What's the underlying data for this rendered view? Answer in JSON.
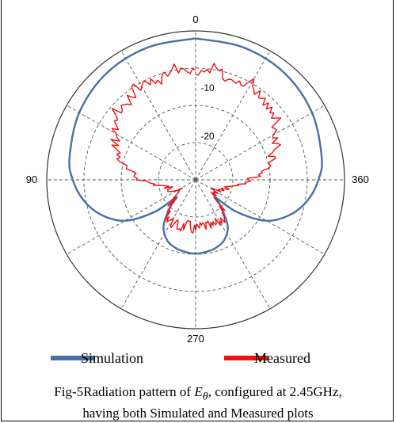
{
  "chart_data": {
    "type": "polar-line",
    "angle_labels": [
      "0",
      "90",
      "270",
      "360"
    ],
    "radial_labels": [
      "-10",
      "-20"
    ],
    "radial_range_db": [
      -40,
      0
    ],
    "grid": true,
    "legend_position": "bottom",
    "series": [
      {
        "name": "Simulation",
        "color": "#4a6fa5",
        "points_deg_db": [
          [
            0,
            -2.0
          ],
          [
            20,
            -2.2
          ],
          [
            40,
            -2.7
          ],
          [
            60,
            -3.9
          ],
          [
            80,
            -5.6
          ],
          [
            90,
            -7.0
          ],
          [
            100,
            -9.3
          ],
          [
            110,
            -12.8
          ],
          [
            120,
            -18.0
          ],
          [
            128,
            -26.0
          ],
          [
            132,
            -33.0
          ],
          [
            136,
            -30.5
          ],
          [
            145,
            -25.0
          ],
          [
            155,
            -22.0
          ],
          [
            165,
            -20.8
          ],
          [
            175,
            -20.3
          ],
          [
            180,
            -20.2
          ],
          [
            185,
            -20.3
          ],
          [
            195,
            -20.8
          ],
          [
            205,
            -22.0
          ],
          [
            215,
            -25.0
          ],
          [
            224,
            -30.5
          ],
          [
            228,
            -33.0
          ],
          [
            232,
            -26.0
          ],
          [
            240,
            -18.0
          ],
          [
            250,
            -12.8
          ],
          [
            260,
            -9.3
          ],
          [
            270,
            -7.0
          ],
          [
            280,
            -5.6
          ],
          [
            300,
            -3.9
          ],
          [
            320,
            -2.7
          ],
          [
            340,
            -2.2
          ],
          [
            360,
            -2.0
          ]
        ]
      },
      {
        "name": "Measured",
        "color": "#ee1111",
        "points_deg_db": [
          [
            0,
            -10.5
          ],
          [
            10,
            -9.5
          ],
          [
            20,
            -11.5
          ],
          [
            30,
            -10.0
          ],
          [
            40,
            -12.5
          ],
          [
            50,
            -12.0
          ],
          [
            60,
            -15.0
          ],
          [
            70,
            -17.5
          ],
          [
            80,
            -20.5
          ],
          [
            90,
            -25.5
          ],
          [
            100,
            -31.0
          ],
          [
            110,
            -33.0
          ],
          [
            120,
            -34.5
          ],
          [
            130,
            -33.0
          ],
          [
            140,
            -28.0
          ],
          [
            150,
            -27.0
          ],
          [
            160,
            -26.5
          ],
          [
            170,
            -27.5
          ],
          [
            180,
            -26.5
          ],
          [
            190,
            -27.5
          ],
          [
            200,
            -26.5
          ],
          [
            210,
            -27.0
          ],
          [
            220,
            -28.0
          ],
          [
            230,
            -33.0
          ],
          [
            240,
            -34.5
          ],
          [
            250,
            -33.0
          ],
          [
            260,
            -31.0
          ],
          [
            270,
            -25.5
          ],
          [
            280,
            -20.5
          ],
          [
            290,
            -17.5
          ],
          [
            300,
            -15.0
          ],
          [
            310,
            -12.0
          ],
          [
            320,
            -12.5
          ],
          [
            330,
            -10.0
          ],
          [
            340,
            -11.5
          ],
          [
            350,
            -9.5
          ],
          [
            360,
            -10.5
          ]
        ]
      }
    ]
  },
  "caption": {
    "line1_prefix": "Fig-5Radiation pattern of ",
    "symbol_base": "E",
    "symbol_sub": "θ",
    "line1_suffix": ", configured at 2.45GHz,",
    "line2": "having both Simulated and Measured plots"
  }
}
